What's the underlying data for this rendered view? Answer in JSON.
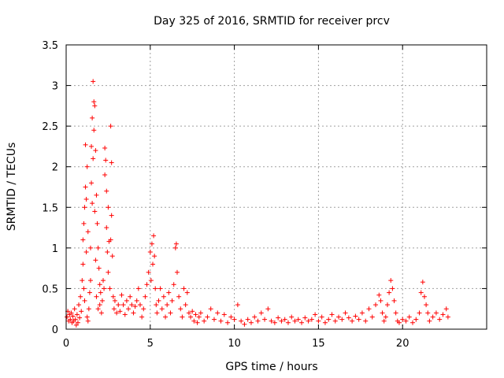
{
  "chart_data": {
    "type": "scatter",
    "title": "Day 325 of 2016, SRMTID for receiver prcv",
    "xlabel": "GPS time / hours",
    "ylabel": "SRMTID / TECUs",
    "xlim": [
      0,
      25
    ],
    "ylim": [
      0,
      3.5
    ],
    "xticks": [
      0,
      5,
      10,
      15,
      20
    ],
    "xtick_labels": [
      "0",
      "5",
      "10",
      "15",
      "20"
    ],
    "yticks": [
      0,
      0.5,
      1,
      1.5,
      2,
      2.5,
      3,
      3.5
    ],
    "ytick_labels": [
      "0",
      "0.5",
      "1",
      "1.5",
      "2",
      "2.5",
      "3",
      "3.5"
    ],
    "grid": true,
    "marker": "+",
    "color": "#ff0000",
    "series": [
      {
        "name": "SRMTID",
        "points": [
          [
            0.05,
            0.15
          ],
          [
            0.1,
            0.22
          ],
          [
            0.15,
            0.1
          ],
          [
            0.2,
            0.18
          ],
          [
            0.25,
            0.12
          ],
          [
            0.3,
            0.2
          ],
          [
            0.35,
            0.08
          ],
          [
            0.4,
            0.16
          ],
          [
            0.45,
            0.1
          ],
          [
            0.5,
            0.25
          ],
          [
            0.55,
            0.12
          ],
          [
            0.6,
            0.05
          ],
          [
            0.65,
            0.18
          ],
          [
            0.7,
            0.08
          ],
          [
            0.75,
            0.3
          ],
          [
            0.8,
            0.14
          ],
          [
            0.85,
            0.4
          ],
          [
            0.9,
            0.22
          ],
          [
            0.95,
            0.6
          ],
          [
            1.0,
            0.8
          ],
          [
            1.0,
            1.1
          ],
          [
            1.05,
            1.3
          ],
          [
            1.05,
            0.5
          ],
          [
            1.1,
            1.5
          ],
          [
            1.1,
            0.35
          ],
          [
            1.15,
            1.75
          ],
          [
            1.15,
            2.27
          ],
          [
            1.2,
            1.6
          ],
          [
            1.2,
            0.95
          ],
          [
            1.25,
            2.0
          ],
          [
            1.25,
            0.15
          ],
          [
            1.3,
            1.2
          ],
          [
            1.3,
            0.1
          ],
          [
            1.35,
            0.25
          ],
          [
            1.4,
            0.45
          ],
          [
            1.45,
            1.0
          ],
          [
            1.45,
            0.6
          ],
          [
            1.5,
            2.25
          ],
          [
            1.5,
            1.8
          ],
          [
            1.55,
            1.55
          ],
          [
            1.55,
            2.6
          ],
          [
            1.6,
            3.05
          ],
          [
            1.6,
            2.1
          ],
          [
            1.65,
            2.8
          ],
          [
            1.65,
            2.45
          ],
          [
            1.7,
            2.75
          ],
          [
            1.7,
            1.45
          ],
          [
            1.75,
            2.2
          ],
          [
            1.75,
            0.85
          ],
          [
            1.8,
            1.65
          ],
          [
            1.8,
            0.4
          ],
          [
            1.85,
            1.3
          ],
          [
            1.9,
            1.0
          ],
          [
            1.9,
            0.25
          ],
          [
            1.95,
            0.75
          ],
          [
            2.0,
            0.55
          ],
          [
            2.0,
            0.3
          ],
          [
            2.05,
            0.45
          ],
          [
            2.1,
            0.2
          ],
          [
            2.15,
            0.35
          ],
          [
            2.2,
            0.6
          ],
          [
            2.25,
            0.5
          ],
          [
            2.3,
            1.9
          ],
          [
            2.3,
            2.23
          ],
          [
            2.35,
            2.08
          ],
          [
            2.4,
            1.7
          ],
          [
            2.4,
            1.25
          ],
          [
            2.45,
            0.95
          ],
          [
            2.5,
            1.5
          ],
          [
            2.5,
            0.7
          ],
          [
            2.55,
            1.08
          ],
          [
            2.6,
            0.5
          ],
          [
            2.65,
            2.5
          ],
          [
            2.65,
            1.1
          ],
          [
            2.7,
            2.05
          ],
          [
            2.7,
            1.4
          ],
          [
            2.75,
            0.9
          ],
          [
            2.8,
            0.4
          ],
          [
            2.85,
            0.25
          ],
          [
            2.9,
            0.35
          ],
          [
            3.0,
            0.2
          ],
          [
            3.1,
            0.3
          ],
          [
            3.2,
            0.22
          ],
          [
            3.3,
            0.42
          ],
          [
            3.4,
            0.3
          ],
          [
            3.5,
            0.18
          ],
          [
            3.6,
            0.35
          ],
          [
            3.7,
            0.25
          ],
          [
            3.8,
            0.4
          ],
          [
            3.9,
            0.3
          ],
          [
            4.0,
            0.2
          ],
          [
            4.1,
            0.28
          ],
          [
            4.2,
            0.35
          ],
          [
            4.3,
            0.5
          ],
          [
            4.4,
            0.3
          ],
          [
            4.5,
            0.15
          ],
          [
            4.6,
            0.25
          ],
          [
            4.7,
            0.4
          ],
          [
            4.8,
            0.55
          ],
          [
            4.9,
            0.7
          ],
          [
            5.0,
            0.95
          ],
          [
            5.05,
            0.6
          ],
          [
            5.1,
            1.05
          ],
          [
            5.15,
            0.8
          ],
          [
            5.2,
            1.15
          ],
          [
            5.25,
            0.9
          ],
          [
            5.3,
            0.5
          ],
          [
            5.35,
            0.3
          ],
          [
            5.4,
            0.2
          ],
          [
            5.5,
            0.35
          ],
          [
            5.6,
            0.5
          ],
          [
            5.7,
            0.25
          ],
          [
            5.8,
            0.4
          ],
          [
            5.9,
            0.15
          ],
          [
            6.0,
            0.3
          ],
          [
            6.1,
            0.45
          ],
          [
            6.2,
            0.2
          ],
          [
            6.3,
            0.35
          ],
          [
            6.4,
            0.55
          ],
          [
            6.5,
            1.0
          ],
          [
            6.55,
            1.05
          ],
          [
            6.6,
            0.7
          ],
          [
            6.7,
            0.4
          ],
          [
            6.8,
            0.25
          ],
          [
            6.9,
            0.15
          ],
          [
            7.0,
            0.5
          ],
          [
            7.1,
            0.3
          ],
          [
            7.2,
            0.45
          ],
          [
            7.3,
            0.2
          ],
          [
            7.4,
            0.15
          ],
          [
            7.5,
            0.22
          ],
          [
            7.6,
            0.1
          ],
          [
            7.7,
            0.18
          ],
          [
            7.8,
            0.08
          ],
          [
            7.9,
            0.15
          ],
          [
            8.0,
            0.2
          ],
          [
            8.2,
            0.1
          ],
          [
            8.4,
            0.15
          ],
          [
            8.6,
            0.25
          ],
          [
            8.8,
            0.12
          ],
          [
            9.0,
            0.2
          ],
          [
            9.2,
            0.1
          ],
          [
            9.4,
            0.18
          ],
          [
            9.6,
            0.08
          ],
          [
            9.8,
            0.15
          ],
          [
            10.0,
            0.12
          ],
          [
            10.2,
            0.3
          ],
          [
            10.4,
            0.1
          ],
          [
            10.6,
            0.06
          ],
          [
            10.8,
            0.12
          ],
          [
            11.0,
            0.08
          ],
          [
            11.2,
            0.15
          ],
          [
            11.4,
            0.1
          ],
          [
            11.6,
            0.2
          ],
          [
            11.8,
            0.12
          ],
          [
            12.0,
            0.25
          ],
          [
            12.2,
            0.1
          ],
          [
            12.4,
            0.08
          ],
          [
            12.6,
            0.14
          ],
          [
            12.8,
            0.1
          ],
          [
            13.0,
            0.12
          ],
          [
            13.2,
            0.08
          ],
          [
            13.4,
            0.15
          ],
          [
            13.6,
            0.1
          ],
          [
            13.8,
            0.12
          ],
          [
            14.0,
            0.08
          ],
          [
            14.2,
            0.14
          ],
          [
            14.4,
            0.1
          ],
          [
            14.6,
            0.12
          ],
          [
            14.8,
            0.18
          ],
          [
            15.0,
            0.1
          ],
          [
            15.2,
            0.15
          ],
          [
            15.4,
            0.08
          ],
          [
            15.6,
            0.12
          ],
          [
            15.8,
            0.18
          ],
          [
            16.0,
            0.1
          ],
          [
            16.2,
            0.15
          ],
          [
            16.4,
            0.12
          ],
          [
            16.6,
            0.2
          ],
          [
            16.8,
            0.14
          ],
          [
            17.0,
            0.1
          ],
          [
            17.2,
            0.16
          ],
          [
            17.4,
            0.12
          ],
          [
            17.6,
            0.2
          ],
          [
            17.8,
            0.1
          ],
          [
            18.0,
            0.25
          ],
          [
            18.2,
            0.15
          ],
          [
            18.4,
            0.3
          ],
          [
            18.6,
            0.42
          ],
          [
            18.7,
            0.35
          ],
          [
            18.8,
            0.2
          ],
          [
            18.9,
            0.1
          ],
          [
            19.0,
            0.15
          ],
          [
            19.1,
            0.3
          ],
          [
            19.2,
            0.45
          ],
          [
            19.3,
            0.6
          ],
          [
            19.4,
            0.5
          ],
          [
            19.5,
            0.35
          ],
          [
            19.6,
            0.2
          ],
          [
            19.7,
            0.1
          ],
          [
            19.8,
            0.08
          ],
          [
            20.0,
            0.12
          ],
          [
            20.2,
            0.1
          ],
          [
            20.4,
            0.15
          ],
          [
            20.6,
            0.08
          ],
          [
            20.8,
            0.12
          ],
          [
            21.0,
            0.2
          ],
          [
            21.1,
            0.45
          ],
          [
            21.2,
            0.58
          ],
          [
            21.3,
            0.4
          ],
          [
            21.4,
            0.3
          ],
          [
            21.5,
            0.2
          ],
          [
            21.6,
            0.1
          ],
          [
            21.8,
            0.15
          ],
          [
            22.0,
            0.2
          ],
          [
            22.2,
            0.12
          ],
          [
            22.4,
            0.18
          ],
          [
            22.6,
            0.25
          ],
          [
            22.7,
            0.15
          ]
        ]
      }
    ]
  }
}
